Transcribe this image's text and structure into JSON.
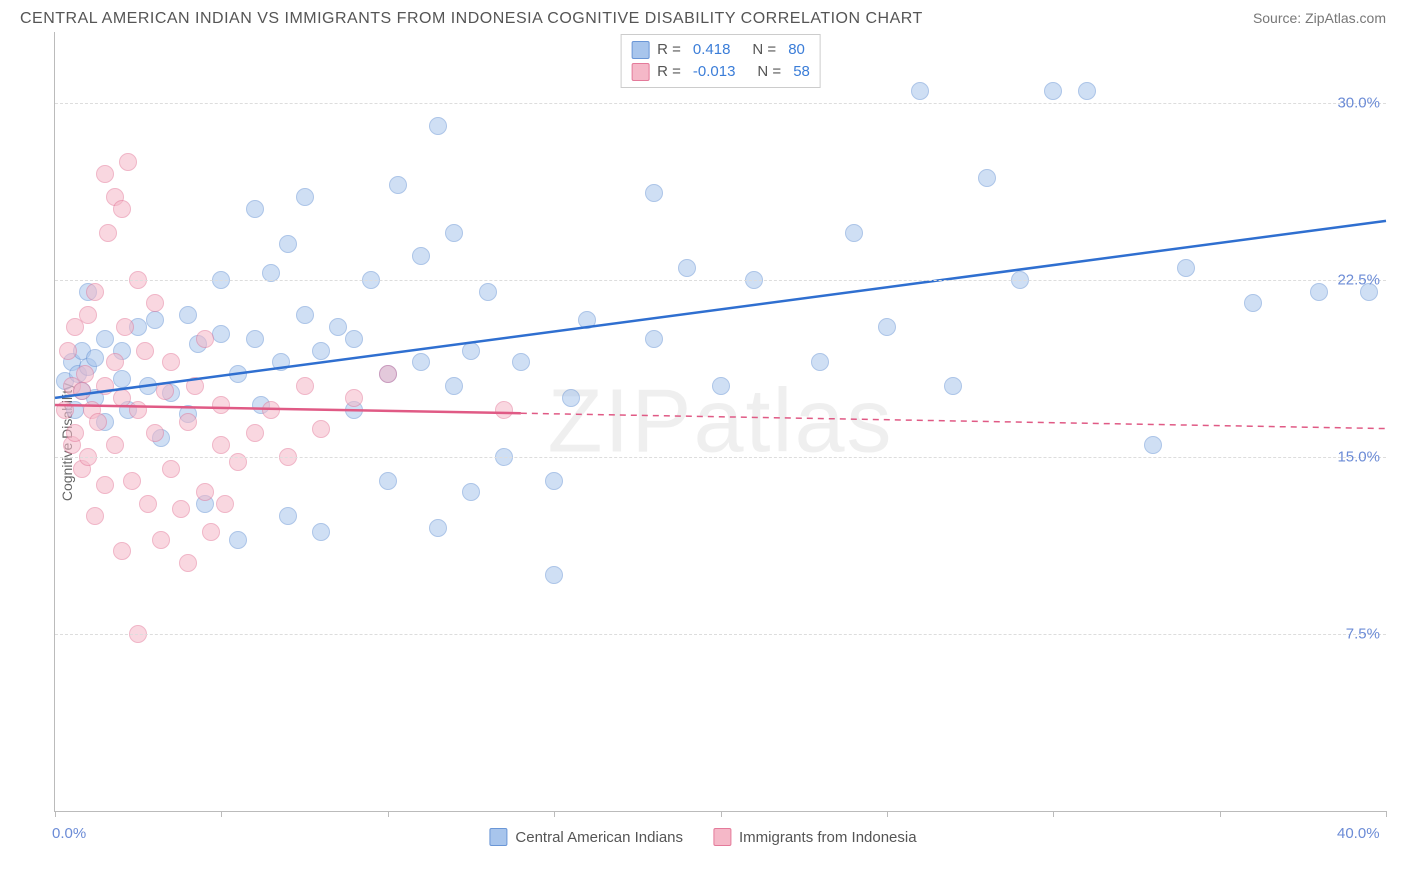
{
  "title": "CENTRAL AMERICAN INDIAN VS IMMIGRANTS FROM INDONESIA COGNITIVE DISABILITY CORRELATION CHART",
  "source": "Source: ZipAtlas.com",
  "watermark": "ZIPatlas",
  "ylabel": "Cognitive Disability",
  "chart": {
    "type": "scatter",
    "background_color": "#ffffff",
    "grid_color": "#dddddd",
    "axis_color": "#bbbbbb",
    "xlim": [
      0,
      40
    ],
    "ylim": [
      0,
      33
    ],
    "y_ticks": [
      7.5,
      15.0,
      22.5,
      30.0
    ],
    "y_tick_labels": [
      "7.5%",
      "15.0%",
      "22.5%",
      "30.0%"
    ],
    "x_ticks": [
      0,
      5,
      10,
      15,
      20,
      25,
      30,
      35,
      40
    ],
    "x_min_label": "0.0%",
    "x_max_label": "40.0%",
    "x_label_color": "#6b8bd6",
    "y_label_color": "#6b8bd6",
    "marker_radius": 9,
    "marker_opacity": 0.55,
    "marker_border_width": 1.2,
    "trend_line_width": 2.5
  },
  "series": [
    {
      "name": "Central American Indians",
      "fill": "#a8c5ec",
      "stroke": "#6a96d6",
      "line_color": "#2f6fd0",
      "R": "0.418",
      "N": "80",
      "trend": {
        "x1": 0,
        "y1": 17.5,
        "x2": 40,
        "y2": 25.0,
        "dashed_from_x": null
      },
      "points": [
        [
          0.3,
          18.2
        ],
        [
          0.5,
          19.0
        ],
        [
          0.6,
          17.0
        ],
        [
          0.7,
          18.5
        ],
        [
          0.8,
          19.5
        ],
        [
          0.8,
          17.8
        ],
        [
          1.0,
          18.8
        ],
        [
          1.0,
          22.0
        ],
        [
          1.2,
          17.5
        ],
        [
          1.2,
          19.2
        ],
        [
          1.5,
          20.0
        ],
        [
          1.5,
          16.5
        ],
        [
          2.0,
          19.5
        ],
        [
          2.0,
          18.3
        ],
        [
          2.2,
          17.0
        ],
        [
          2.5,
          20.5
        ],
        [
          2.8,
          18.0
        ],
        [
          3.0,
          20.8
        ],
        [
          3.2,
          15.8
        ],
        [
          3.5,
          17.7
        ],
        [
          4.0,
          21.0
        ],
        [
          4.0,
          16.8
        ],
        [
          4.3,
          19.8
        ],
        [
          4.5,
          13.0
        ],
        [
          5.0,
          20.2
        ],
        [
          5.0,
          22.5
        ],
        [
          5.5,
          18.5
        ],
        [
          5.5,
          11.5
        ],
        [
          6.0,
          20.0
        ],
        [
          6.0,
          25.5
        ],
        [
          6.2,
          17.2
        ],
        [
          6.5,
          22.8
        ],
        [
          6.8,
          19.0
        ],
        [
          7.0,
          24.0
        ],
        [
          7.0,
          12.5
        ],
        [
          7.5,
          21.0
        ],
        [
          7.5,
          26.0
        ],
        [
          8.0,
          19.5
        ],
        [
          8.0,
          11.8
        ],
        [
          8.5,
          20.5
        ],
        [
          9.0,
          17.0
        ],
        [
          9.0,
          20.0
        ],
        [
          9.5,
          22.5
        ],
        [
          10.0,
          18.5
        ],
        [
          10.0,
          14.0
        ],
        [
          10.3,
          26.5
        ],
        [
          11.0,
          19.0
        ],
        [
          11.0,
          23.5
        ],
        [
          11.5,
          29.0
        ],
        [
          11.5,
          12.0
        ],
        [
          12.0,
          18.0
        ],
        [
          12.0,
          24.5
        ],
        [
          12.5,
          13.5
        ],
        [
          12.5,
          19.5
        ],
        [
          13.0,
          22.0
        ],
        [
          13.5,
          15.0
        ],
        [
          14.0,
          19.0
        ],
        [
          15.0,
          10.0
        ],
        [
          15.0,
          14.0
        ],
        [
          15.5,
          17.5
        ],
        [
          16.0,
          20.8
        ],
        [
          18.0,
          20.0
        ],
        [
          18.0,
          26.2
        ],
        [
          19.0,
          23.0
        ],
        [
          20.0,
          18.0
        ],
        [
          21.0,
          22.5
        ],
        [
          23.0,
          19.0
        ],
        [
          24.0,
          24.5
        ],
        [
          25.0,
          20.5
        ],
        [
          26.0,
          30.5
        ],
        [
          27.0,
          18.0
        ],
        [
          28.0,
          26.8
        ],
        [
          29.0,
          22.5
        ],
        [
          30.0,
          30.5
        ],
        [
          31.0,
          30.5
        ],
        [
          33.0,
          15.5
        ],
        [
          34.0,
          23.0
        ],
        [
          36.0,
          21.5
        ],
        [
          38.0,
          22.0
        ],
        [
          39.5,
          22.0
        ]
      ]
    },
    {
      "name": "Immigrants from Indonesia",
      "fill": "#f5b8c8",
      "stroke": "#e47a9a",
      "line_color": "#e05a85",
      "R": "-0.013",
      "N": "58",
      "trend": {
        "x1": 0,
        "y1": 17.2,
        "x2": 40,
        "y2": 16.2,
        "dashed_from_x": 14
      },
      "points": [
        [
          0.3,
          17.0
        ],
        [
          0.4,
          19.5
        ],
        [
          0.5,
          15.5
        ],
        [
          0.5,
          18.0
        ],
        [
          0.6,
          16.0
        ],
        [
          0.6,
          20.5
        ],
        [
          0.8,
          17.8
        ],
        [
          0.8,
          14.5
        ],
        [
          0.9,
          18.5
        ],
        [
          1.0,
          21.0
        ],
        [
          1.0,
          15.0
        ],
        [
          1.1,
          17.0
        ],
        [
          1.2,
          22.0
        ],
        [
          1.2,
          12.5
        ],
        [
          1.3,
          16.5
        ],
        [
          1.5,
          27.0
        ],
        [
          1.5,
          13.8
        ],
        [
          1.5,
          18.0
        ],
        [
          1.6,
          24.5
        ],
        [
          1.8,
          15.5
        ],
        [
          1.8,
          19.0
        ],
        [
          1.8,
          26.0
        ],
        [
          2.0,
          11.0
        ],
        [
          2.0,
          17.5
        ],
        [
          2.0,
          25.5
        ],
        [
          2.1,
          20.5
        ],
        [
          2.2,
          27.5
        ],
        [
          2.3,
          14.0
        ],
        [
          2.5,
          17.0
        ],
        [
          2.5,
          22.5
        ],
        [
          2.5,
          7.5
        ],
        [
          2.7,
          19.5
        ],
        [
          2.8,
          13.0
        ],
        [
          3.0,
          16.0
        ],
        [
          3.0,
          21.5
        ],
        [
          3.2,
          11.5
        ],
        [
          3.3,
          17.8
        ],
        [
          3.5,
          14.5
        ],
        [
          3.5,
          19.0
        ],
        [
          3.8,
          12.8
        ],
        [
          4.0,
          16.5
        ],
        [
          4.0,
          10.5
        ],
        [
          4.2,
          18.0
        ],
        [
          4.5,
          13.5
        ],
        [
          4.5,
          20.0
        ],
        [
          4.7,
          11.8
        ],
        [
          5.0,
          15.5
        ],
        [
          5.0,
          17.2
        ],
        [
          5.1,
          13.0
        ],
        [
          5.5,
          14.8
        ],
        [
          6.0,
          16.0
        ],
        [
          6.5,
          17.0
        ],
        [
          7.0,
          15.0
        ],
        [
          7.5,
          18.0
        ],
        [
          8.0,
          16.2
        ],
        [
          9.0,
          17.5
        ],
        [
          10.0,
          18.5
        ],
        [
          13.5,
          17.0
        ]
      ]
    }
  ],
  "bottom_legend": [
    {
      "label": "Central American Indians",
      "series_index": 0
    },
    {
      "label": "Immigrants from Indonesia",
      "series_index": 1
    }
  ]
}
